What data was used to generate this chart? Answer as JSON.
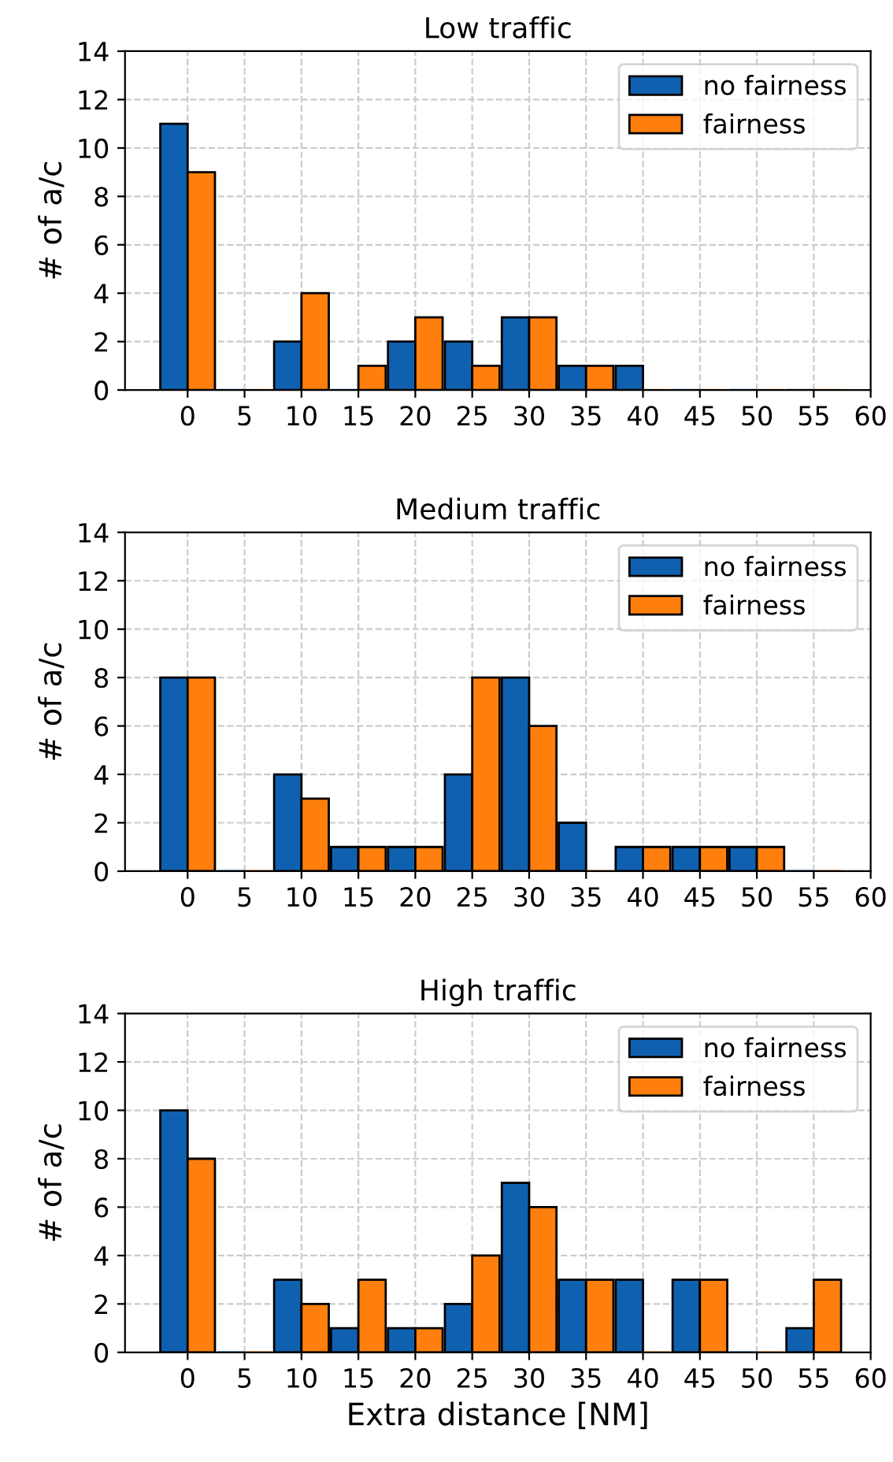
{
  "chart_data": [
    {
      "type": "bar",
      "title": "Low traffic",
      "ylabel": "# of a/c",
      "x": [
        0,
        5,
        10,
        15,
        20,
        25,
        30,
        35,
        40,
        45,
        50,
        55
      ],
      "xlim": [
        -5.5,
        60
      ],
      "xticks": [
        0,
        5,
        10,
        15,
        20,
        25,
        30,
        35,
        40,
        45,
        50,
        55,
        60
      ],
      "ylim": [
        0,
        14
      ],
      "yticks": [
        0,
        2,
        4,
        6,
        8,
        10,
        12,
        14
      ],
      "grid": true,
      "legend": "top right",
      "series": [
        {
          "name": "no fairness",
          "color": "#1060b0",
          "values": [
            11,
            0,
            2,
            0,
            2,
            2,
            3,
            1,
            1,
            0,
            0,
            0
          ]
        },
        {
          "name": "fairness",
          "color": "#ff7f0e",
          "values": [
            9,
            0,
            4,
            1,
            3,
            1,
            3,
            1,
            0,
            0,
            0,
            0
          ]
        }
      ]
    },
    {
      "type": "bar",
      "title": "Medium traffic",
      "ylabel": "# of a/c",
      "x": [
        0,
        5,
        10,
        15,
        20,
        25,
        30,
        35,
        40,
        45,
        50,
        55
      ],
      "xlim": [
        -5.5,
        60
      ],
      "xticks": [
        0,
        5,
        10,
        15,
        20,
        25,
        30,
        35,
        40,
        45,
        50,
        55,
        60
      ],
      "ylim": [
        0,
        14
      ],
      "yticks": [
        0,
        2,
        4,
        6,
        8,
        10,
        12,
        14
      ],
      "grid": true,
      "legend": "top right",
      "series": [
        {
          "name": "no fairness",
          "color": "#1060b0",
          "values": [
            8,
            0,
            4,
            1,
            1,
            4,
            8,
            2,
            1,
            1,
            1,
            0
          ]
        },
        {
          "name": "fairness",
          "color": "#ff7f0e",
          "values": [
            8,
            0,
            3,
            1,
            1,
            8,
            6,
            0,
            1,
            1,
            1,
            0
          ]
        }
      ]
    },
    {
      "type": "bar",
      "title": "High traffic",
      "ylabel": "# of a/c",
      "xlabel": "Extra distance [NM]",
      "x": [
        0,
        5,
        10,
        15,
        20,
        25,
        30,
        35,
        40,
        45,
        50,
        55
      ],
      "xlim": [
        -5.5,
        60
      ],
      "xticks": [
        0,
        5,
        10,
        15,
        20,
        25,
        30,
        35,
        40,
        45,
        50,
        55,
        60
      ],
      "ylim": [
        0,
        14
      ],
      "yticks": [
        0,
        2,
        4,
        6,
        8,
        10,
        12,
        14
      ],
      "grid": true,
      "legend": "top right",
      "series": [
        {
          "name": "no fairness",
          "color": "#1060b0",
          "values": [
            10,
            0,
            3,
            1,
            1,
            2,
            7,
            3,
            3,
            3,
            0,
            1
          ]
        },
        {
          "name": "fairness",
          "color": "#ff7f0e",
          "values": [
            8,
            0,
            2,
            3,
            1,
            4,
            6,
            3,
            0,
            3,
            0,
            3
          ]
        }
      ]
    }
  ]
}
